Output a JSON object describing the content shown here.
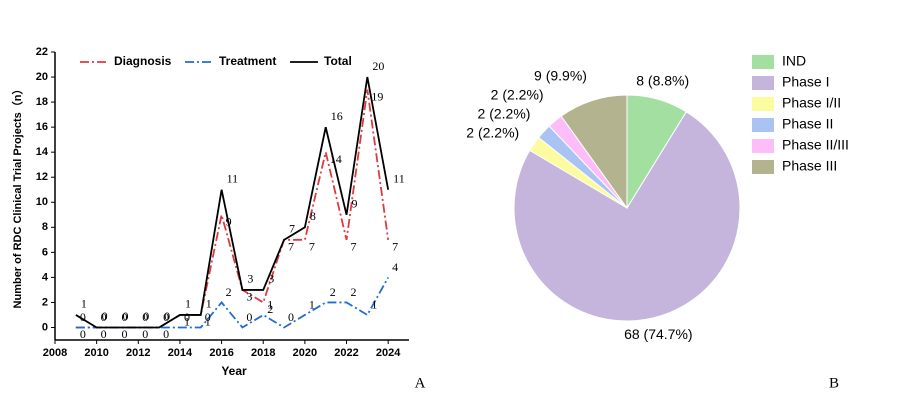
{
  "chart_data": [
    {
      "type": "line",
      "x": [
        2009,
        2010,
        2011,
        2012,
        2013,
        2014,
        2015,
        2016,
        2017,
        2018,
        2019,
        2020,
        2021,
        2022,
        2023,
        2024
      ],
      "series": [
        {
          "name": "Diagnosis",
          "color": "#e0393e",
          "values": [
            0,
            0,
            0,
            0,
            0,
            1,
            1,
            9,
            3,
            2,
            7,
            7,
            14,
            7,
            19,
            7
          ]
        },
        {
          "name": "Treatment",
          "color": "#1f6fd1",
          "values": [
            0,
            0,
            0,
            0,
            0,
            0,
            0,
            2,
            0,
            1,
            0,
            1,
            2,
            2,
            1,
            4
          ]
        },
        {
          "name": "Total",
          "color": "#000000",
          "values": [
            1,
            0,
            0,
            0,
            0,
            1,
            1,
            11,
            3,
            3,
            7,
            8,
            16,
            9,
            20,
            11
          ]
        }
      ],
      "xlabel": "Year",
      "ylabel": "Number of RDC Clinical Trial Projects（n）",
      "xlim": [
        2008,
        2025
      ],
      "xticks": [
        2008,
        2010,
        2012,
        2014,
        2016,
        2018,
        2020,
        2022,
        2024
      ],
      "ylim": [
        -1,
        22
      ],
      "yticks": [
        0,
        2,
        4,
        6,
        8,
        10,
        12,
        14,
        16,
        18,
        20,
        22
      ],
      "panel_label": "A"
    },
    {
      "type": "pie",
      "categories": [
        "IND",
        "Phase I",
        "Phase I/II",
        "Phase II",
        "Phase II/III",
        "Phase III"
      ],
      "values": [
        8,
        68,
        2,
        2,
        2,
        9
      ],
      "value_labels": [
        "8 (8.8%)",
        "68 (74.7%)",
        "2 (2.2%)",
        "2 (2.2%)",
        "2 (2.2%)",
        "9 (9.9%)"
      ],
      "colors": [
        "#a3dfa0",
        "#c5b4dc",
        "#fdfba0",
        "#a9c4f2",
        "#fdbdf8",
        "#b3b48f"
      ],
      "panel_label": "B"
    }
  ]
}
